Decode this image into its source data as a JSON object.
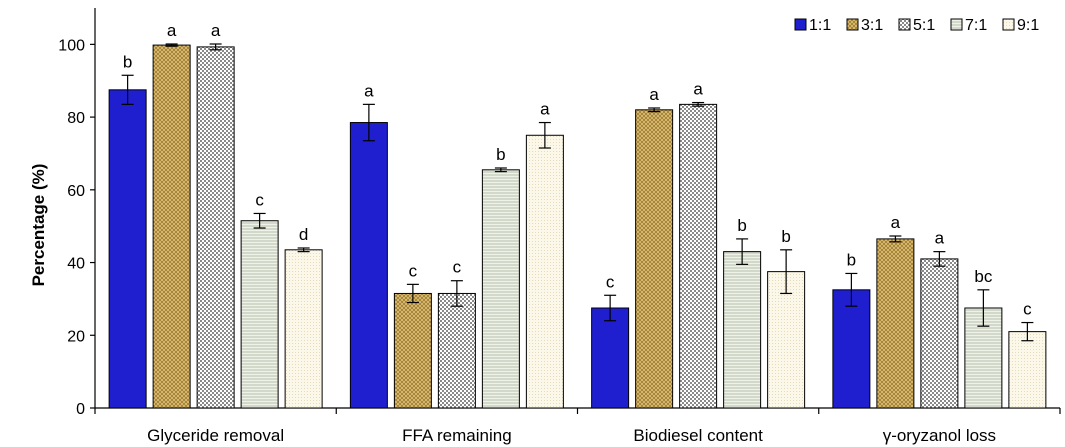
{
  "chart_data": {
    "type": "bar",
    "title": "",
    "xlabel": "",
    "ylabel": "Percentage (%)",
    "ylim": [
      0,
      110
    ],
    "yticks": [
      0,
      20,
      40,
      60,
      80,
      100
    ],
    "grid": false,
    "legend_position": "top-right",
    "categories": [
      "Glyceride removal",
      "FFA remaining",
      "Biodiesel content",
      "γ-oryzanol loss"
    ],
    "series": [
      {
        "name": "1:1",
        "color": "#1f1fd0",
        "pattern": "solid",
        "values": [
          87.5,
          78.5,
          27.5,
          32.5
        ],
        "errors": [
          4,
          5,
          3.5,
          4.5
        ],
        "letters": [
          "b",
          "a",
          "c",
          "b"
        ]
      },
      {
        "name": "3:1",
        "color": "#c8a24a",
        "pattern": "crosshatch",
        "values": [
          99.8,
          31.5,
          82,
          46.5
        ],
        "errors": [
          0.3,
          2.5,
          0.5,
          0.8
        ],
        "letters": [
          "a",
          "c",
          "a",
          "a"
        ]
      },
      {
        "name": "5:1",
        "color": "#9a9a9a",
        "pattern": "dots",
        "values": [
          99.3,
          31.5,
          83.5,
          41
        ],
        "errors": [
          0.8,
          3.5,
          0.5,
          2
        ],
        "letters": [
          "a",
          "c",
          "a",
          "a"
        ]
      },
      {
        "name": "7:1",
        "color": "#d2d8c8",
        "pattern": "hlines",
        "values": [
          51.5,
          65.5,
          43,
          27.5
        ],
        "errors": [
          2,
          0.5,
          3.5,
          5
        ],
        "letters": [
          "c",
          "b",
          "b",
          "bc"
        ]
      },
      {
        "name": "9:1",
        "color": "#f2eed8",
        "pattern": "fine",
        "values": [
          43.5,
          75,
          37.5,
          21
        ],
        "errors": [
          0.5,
          3.5,
          6,
          2.5
        ],
        "letters": [
          "d",
          "a",
          "b",
          "c"
        ]
      }
    ]
  }
}
